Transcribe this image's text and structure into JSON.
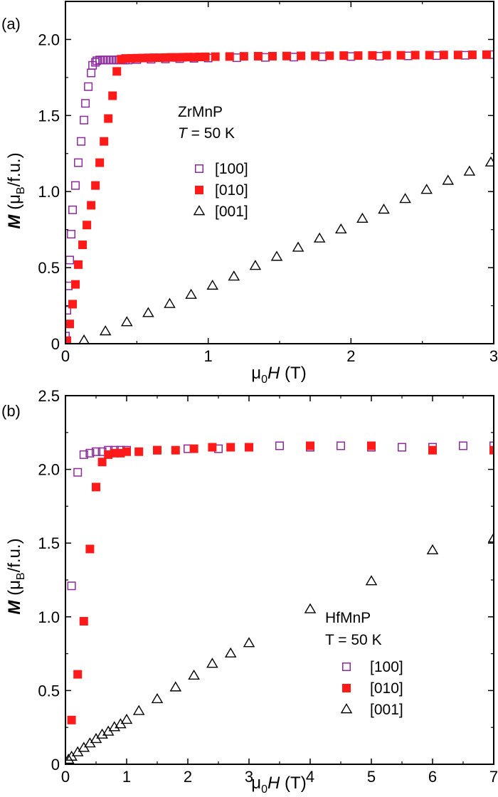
{
  "figure": {
    "background": "#ffffff"
  },
  "chart_data": [
    {
      "type": "scatter",
      "panel_label": "(a)",
      "xlabel": {
        "main": "μ",
        "sub": "0",
        "italic": "H",
        "unit": " (T)"
      },
      "ylabel": {
        "italic": "M",
        "open": " (μ",
        "sub": "B",
        "close": "/f.u.)"
      },
      "xlim": [
        0,
        3
      ],
      "ylim": [
        0,
        2.25
      ],
      "xticks": [
        0,
        1,
        2,
        3
      ],
      "xtick_labels": [
        "0",
        "1",
        "2",
        "3"
      ],
      "yticks": [
        0,
        0.5,
        1.0,
        1.5,
        2.0
      ],
      "ytick_labels": [
        "0",
        "0.5",
        "1.0",
        "1.5",
        "2.0"
      ],
      "grid": false,
      "legend_position": "center",
      "legend_title": [
        "ZrMnP",
        "T = 50 K"
      ],
      "legend_title_parts": [
        {
          "italic": "",
          "rest": "ZrMnP"
        },
        {
          "italic": "T",
          "rest": " = 50 K"
        }
      ],
      "series": [
        {
          "name": "[100]",
          "marker": "open-square",
          "color": "#8b2a9b",
          "x": [
            0.0,
            0.01,
            0.02,
            0.03,
            0.04,
            0.05,
            0.07,
            0.09,
            0.11,
            0.13,
            0.14,
            0.16,
            0.18,
            0.19,
            0.21,
            0.22,
            0.24,
            0.26,
            0.28,
            0.3,
            0.32,
            0.34,
            0.36,
            0.38,
            0.4,
            0.42,
            0.44,
            0.5,
            0.6,
            0.7,
            0.8,
            0.9,
            1.0,
            1.2,
            1.4,
            1.6,
            1.8,
            2.0,
            2.2,
            2.4,
            2.6,
            2.8,
            3.0
          ],
          "y": [
            0.05,
            0.22,
            0.38,
            0.55,
            0.72,
            0.88,
            1.04,
            1.19,
            1.33,
            1.47,
            1.58,
            1.69,
            1.78,
            1.83,
            1.85,
            1.86,
            1.865,
            1.865,
            1.865,
            1.865,
            1.865,
            1.865,
            1.865,
            1.865,
            1.865,
            1.865,
            1.865,
            1.868,
            1.87,
            1.872,
            1.874,
            1.876,
            1.878,
            1.88,
            1.882,
            1.884,
            1.886,
            1.888,
            1.89,
            1.892,
            1.894,
            1.896,
            1.9
          ]
        },
        {
          "name": "[010]",
          "marker": "filled-square",
          "color": "#ff1a1a",
          "x": [
            0.01,
            0.03,
            0.05,
            0.07,
            0.09,
            0.12,
            0.15,
            0.18,
            0.21,
            0.24,
            0.27,
            0.3,
            0.33,
            0.36,
            0.39,
            0.42,
            0.46,
            0.5,
            0.54,
            0.58,
            0.62,
            0.66,
            0.7,
            0.74,
            0.78,
            0.82,
            0.86,
            0.9,
            0.94,
            0.98,
            1.05,
            1.15,
            1.25,
            1.35,
            1.45,
            1.55,
            1.65,
            1.75,
            1.85,
            1.95,
            2.05,
            2.15,
            2.25,
            2.35,
            2.45,
            2.55,
            2.65,
            2.75,
            2.85,
            2.95
          ],
          "y": [
            0.02,
            0.13,
            0.26,
            0.39,
            0.52,
            0.65,
            0.78,
            0.91,
            1.04,
            1.19,
            1.33,
            1.48,
            1.63,
            1.79,
            1.87,
            1.875,
            1.876,
            1.877,
            1.878,
            1.879,
            1.88,
            1.88,
            1.881,
            1.882,
            1.882,
            1.883,
            1.884,
            1.884,
            1.885,
            1.886,
            1.887,
            1.888,
            1.889,
            1.89,
            1.89,
            1.891,
            1.892,
            1.892,
            1.893,
            1.894,
            1.894,
            1.895,
            1.896,
            1.896,
            1.897,
            1.897,
            1.898,
            1.898,
            1.899,
            1.9
          ]
        },
        {
          "name": "[001]",
          "marker": "open-triangle",
          "color": "#000000",
          "x": [
            0.13,
            0.28,
            0.43,
            0.58,
            0.73,
            0.88,
            1.03,
            1.18,
            1.33,
            1.48,
            1.63,
            1.78,
            1.93,
            2.08,
            2.23,
            2.38,
            2.53,
            2.68,
            2.83,
            2.98
          ],
          "y": [
            0.02,
            0.08,
            0.14,
            0.2,
            0.26,
            0.32,
            0.38,
            0.44,
            0.51,
            0.57,
            0.63,
            0.69,
            0.75,
            0.82,
            0.88,
            0.95,
            1.01,
            1.07,
            1.13,
            1.19
          ]
        }
      ]
    },
    {
      "type": "scatter",
      "panel_label": "(b)",
      "xlabel": {
        "main": "μ",
        "sub": "0",
        "italic": "H",
        "unit": " (T)"
      },
      "ylabel": {
        "italic": "M",
        "open": " (μ",
        "sub": "B",
        "close": "/f.u.)"
      },
      "xlim": [
        0,
        7
      ],
      "ylim": [
        0,
        2.5
      ],
      "xticks": [
        0,
        1,
        2,
        3,
        4,
        5,
        6,
        7
      ],
      "xtick_labels": [
        "0",
        "1",
        "2",
        "3",
        "4",
        "5",
        "6",
        "7"
      ],
      "yticks": [
        0,
        0.5,
        1.0,
        1.5,
        2.0,
        2.5
      ],
      "ytick_labels": [
        "0",
        "0.5",
        "1.0",
        "1.5",
        "2.0",
        "2.5"
      ],
      "grid": false,
      "legend_position": "bottom-right",
      "legend_title": [
        "HfMnP",
        "T = 50 K"
      ],
      "legend_title_parts": [
        {
          "italic": "",
          "rest": "HfMnP"
        },
        {
          "italic": "",
          "rest": "T = 50 K"
        }
      ],
      "series": [
        {
          "name": "[100]",
          "marker": "open-square",
          "color": "#8b2a9b",
          "x": [
            0.1,
            0.2,
            0.3,
            0.4,
            0.5,
            0.6,
            0.7,
            0.8,
            0.9,
            1.0,
            1.5,
            2.0,
            2.5,
            3.0,
            3.5,
            4.0,
            4.5,
            5.0,
            5.5,
            6.0,
            6.5,
            7.0
          ],
          "y": [
            1.21,
            1.98,
            2.1,
            2.11,
            2.12,
            2.12,
            2.13,
            2.13,
            2.13,
            2.13,
            2.13,
            2.14,
            2.14,
            2.15,
            2.16,
            2.15,
            2.16,
            2.15,
            2.15,
            2.15,
            2.16,
            2.16
          ]
        },
        {
          "name": "[010]",
          "marker": "filled-square",
          "color": "#ff1a1a",
          "x": [
            0.1,
            0.2,
            0.3,
            0.4,
            0.5,
            0.6,
            0.7,
            0.8,
            0.9,
            1.0,
            1.2,
            1.5,
            1.8,
            2.1,
            2.4,
            2.7,
            3.0,
            4.0,
            5.0,
            6.0,
            7.0
          ],
          "y": [
            0.3,
            0.61,
            0.97,
            1.46,
            1.88,
            2.05,
            2.1,
            2.11,
            2.11,
            2.12,
            2.12,
            2.13,
            2.13,
            2.14,
            2.15,
            2.15,
            2.15,
            2.16,
            2.16,
            2.13,
            2.13
          ]
        },
        {
          "name": "[001]",
          "marker": "open-triangle",
          "color": "#000000",
          "x": [
            0.05,
            0.1,
            0.2,
            0.3,
            0.4,
            0.5,
            0.6,
            0.7,
            0.8,
            0.9,
            1.0,
            1.2,
            1.5,
            1.8,
            2.1,
            2.4,
            2.7,
            3.0,
            4.0,
            5.0,
            6.0,
            7.0
          ],
          "y": [
            0.03,
            0.05,
            0.08,
            0.11,
            0.14,
            0.17,
            0.2,
            0.22,
            0.25,
            0.27,
            0.3,
            0.36,
            0.44,
            0.52,
            0.6,
            0.68,
            0.75,
            0.82,
            1.05,
            1.24,
            1.45,
            1.53
          ]
        }
      ]
    }
  ]
}
